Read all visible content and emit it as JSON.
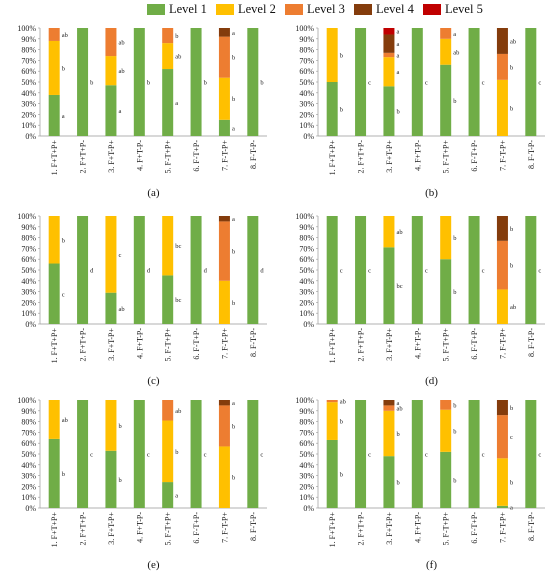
{
  "legend": [
    {
      "label": "Level 1",
      "color": "#70AD47"
    },
    {
      "label": "Level 2",
      "color": "#FFC000"
    },
    {
      "label": "Level 3",
      "color": "#ED7D31"
    },
    {
      "label": "Level 4",
      "color": "#843C0C"
    },
    {
      "label": "Level 5",
      "color": "#C00000"
    }
  ],
  "chart_data": [
    {
      "type": "bar",
      "stacked": true,
      "panel_label": "(a)",
      "categories": [
        "1. F+T+P+",
        "2. F+T+P-",
        "3. F+T-P+",
        "4. F+T-P-",
        "5. F-T+P+",
        "6. F-T+P-",
        "7. F-T-P+",
        "8. F-T-P-"
      ],
      "ylim": [
        0,
        100
      ],
      "yticks": [
        "0%",
        "10%",
        "20%",
        "30%",
        "40%",
        "50%",
        "60%",
        "70%",
        "80%",
        "90%",
        "100%"
      ],
      "series": [
        {
          "name": "Level 1",
          "values": [
            38,
            100,
            47,
            100,
            62,
            100,
            15,
            100
          ]
        },
        {
          "name": "Level 2",
          "values": [
            50,
            0,
            27,
            0,
            24,
            0,
            39,
            0
          ]
        },
        {
          "name": "Level 3",
          "values": [
            12,
            0,
            26,
            0,
            14,
            0,
            38,
            0
          ]
        },
        {
          "name": "Level 4",
          "values": [
            0,
            0,
            0,
            0,
            0,
            0,
            8,
            0
          ]
        },
        {
          "name": "Level 5",
          "values": [
            0,
            0,
            0,
            0,
            0,
            0,
            0,
            0
          ]
        }
      ],
      "letters": [
        {
          "cat": 0,
          "level": 0,
          "text": "a"
        },
        {
          "cat": 0,
          "level": 1,
          "text": "b"
        },
        {
          "cat": 0,
          "level": 2,
          "text": "ab"
        },
        {
          "cat": 1,
          "level": 0,
          "text": "b"
        },
        {
          "cat": 2,
          "level": 0,
          "text": "a"
        },
        {
          "cat": 2,
          "level": 1,
          "text": "ab"
        },
        {
          "cat": 2,
          "level": 2,
          "text": "ab"
        },
        {
          "cat": 3,
          "level": 0,
          "text": "b"
        },
        {
          "cat": 4,
          "level": 0,
          "text": "a"
        },
        {
          "cat": 4,
          "level": 1,
          "text": "ab"
        },
        {
          "cat": 4,
          "level": 2,
          "text": "b"
        },
        {
          "cat": 5,
          "level": 0,
          "text": "b"
        },
        {
          "cat": 6,
          "level": 0,
          "text": "a"
        },
        {
          "cat": 6,
          "level": 1,
          "text": "b"
        },
        {
          "cat": 6,
          "level": 2,
          "text": "b"
        },
        {
          "cat": 6,
          "level": 3,
          "text": "a"
        },
        {
          "cat": 7,
          "level": 0,
          "text": "b"
        }
      ]
    },
    {
      "type": "bar",
      "stacked": true,
      "panel_label": "(b)",
      "categories": [
        "1. F+T+P+",
        "2. F+T+P-",
        "3. F+T-P+",
        "4. F+T-P-",
        "5. F-T+P+",
        "6. F-T+P-",
        "7. F-T-P+",
        "8. F-T-P-"
      ],
      "ylim": [
        0,
        100
      ],
      "yticks": [
        "0%",
        "10%",
        "20%",
        "30%",
        "40%",
        "50%",
        "60%",
        "70%",
        "80%",
        "90%",
        "100%"
      ],
      "series": [
        {
          "name": "Level 1",
          "values": [
            50,
            100,
            46,
            100,
            66,
            100,
            0,
            100
          ]
        },
        {
          "name": "Level 2",
          "values": [
            50,
            0,
            27,
            0,
            24,
            0,
            52,
            0
          ]
        },
        {
          "name": "Level 3",
          "values": [
            0,
            0,
            4,
            0,
            10,
            0,
            24,
            0
          ]
        },
        {
          "name": "Level 4",
          "values": [
            0,
            0,
            17,
            0,
            0,
            0,
            24,
            0
          ]
        },
        {
          "name": "Level 5",
          "values": [
            0,
            0,
            6,
            0,
            0,
            0,
            0,
            0
          ]
        }
      ],
      "letters": [
        {
          "cat": 0,
          "level": 0,
          "text": "b"
        },
        {
          "cat": 0,
          "level": 1,
          "text": "b"
        },
        {
          "cat": 1,
          "level": 0,
          "text": "c"
        },
        {
          "cat": 2,
          "level": 0,
          "text": "b"
        },
        {
          "cat": 2,
          "level": 1,
          "text": "a"
        },
        {
          "cat": 2,
          "level": 2,
          "text": "a"
        },
        {
          "cat": 2,
          "level": 3,
          "text": "a"
        },
        {
          "cat": 2,
          "level": 4,
          "text": "a"
        },
        {
          "cat": 3,
          "level": 0,
          "text": "c"
        },
        {
          "cat": 4,
          "level": 0,
          "text": "b"
        },
        {
          "cat": 4,
          "level": 1,
          "text": "ab"
        },
        {
          "cat": 4,
          "level": 2,
          "text": "a"
        },
        {
          "cat": 5,
          "level": 0,
          "text": "c"
        },
        {
          "cat": 6,
          "level": 1,
          "text": "b"
        },
        {
          "cat": 6,
          "level": 2,
          "text": "b"
        },
        {
          "cat": 6,
          "level": 3,
          "text": "ab"
        },
        {
          "cat": 7,
          "level": 0,
          "text": "c"
        }
      ]
    },
    {
      "type": "bar",
      "stacked": true,
      "panel_label": "(c)",
      "categories": [
        "1. F+T+P+",
        "2. F+T+P-",
        "3. F+T-P+",
        "4. F+T-P-",
        "5. F-T+P+",
        "6. F-T+P-",
        "7. F-T-P+",
        "8. F-T-P-"
      ],
      "ylim": [
        0,
        100
      ],
      "yticks": [
        "0%",
        "10%",
        "20%",
        "30%",
        "40%",
        "50%",
        "60%",
        "70%",
        "80%",
        "90%",
        "100%"
      ],
      "series": [
        {
          "name": "Level 1",
          "values": [
            56,
            100,
            29,
            100,
            45,
            100,
            0,
            100
          ]
        },
        {
          "name": "Level 2",
          "values": [
            44,
            0,
            71,
            0,
            55,
            0,
            40,
            0
          ]
        },
        {
          "name": "Level 3",
          "values": [
            0,
            0,
            0,
            0,
            0,
            0,
            55,
            0
          ]
        },
        {
          "name": "Level 4",
          "values": [
            0,
            0,
            0,
            0,
            0,
            0,
            5,
            0
          ]
        },
        {
          "name": "Level 5",
          "values": [
            0,
            0,
            0,
            0,
            0,
            0,
            0,
            0
          ]
        }
      ],
      "letters": [
        {
          "cat": 0,
          "level": 0,
          "text": "c"
        },
        {
          "cat": 0,
          "level": 1,
          "text": "b"
        },
        {
          "cat": 1,
          "level": 0,
          "text": "d"
        },
        {
          "cat": 2,
          "level": 0,
          "text": "ab"
        },
        {
          "cat": 2,
          "level": 1,
          "text": "c"
        },
        {
          "cat": 3,
          "level": 0,
          "text": "d"
        },
        {
          "cat": 4,
          "level": 0,
          "text": "bc"
        },
        {
          "cat": 4,
          "level": 1,
          "text": "bc"
        },
        {
          "cat": 5,
          "level": 0,
          "text": "d"
        },
        {
          "cat": 6,
          "level": 1,
          "text": "b"
        },
        {
          "cat": 6,
          "level": 2,
          "text": "b"
        },
        {
          "cat": 6,
          "level": 3,
          "text": "a"
        },
        {
          "cat": 7,
          "level": 0,
          "text": "d"
        }
      ]
    },
    {
      "type": "bar",
      "stacked": true,
      "panel_label": "(d)",
      "categories": [
        "1. F+T+P+",
        "2. F+T+P-",
        "3. F+T-P+",
        "4. F+T-P-",
        "5. F-T+P+",
        "6. F-T+P-",
        "7. F-T-P+",
        "8. F-T-P-"
      ],
      "ylim": [
        0,
        100
      ],
      "yticks": [
        "0%",
        "10%",
        "20%",
        "30%",
        "40%",
        "50%",
        "60%",
        "70%",
        "80%",
        "90%",
        "100%"
      ],
      "series": [
        {
          "name": "Level 1",
          "values": [
            100,
            100,
            71,
            100,
            60,
            100,
            0,
            100
          ]
        },
        {
          "name": "Level 2",
          "values": [
            0,
            0,
            29,
            0,
            40,
            0,
            32,
            0
          ]
        },
        {
          "name": "Level 3",
          "values": [
            0,
            0,
            0,
            0,
            0,
            0,
            45,
            0
          ]
        },
        {
          "name": "Level 4",
          "values": [
            0,
            0,
            0,
            0,
            0,
            0,
            23,
            0
          ]
        },
        {
          "name": "Level 5",
          "values": [
            0,
            0,
            0,
            0,
            0,
            0,
            0,
            0
          ]
        }
      ],
      "letters": [
        {
          "cat": 0,
          "level": 0,
          "text": "c"
        },
        {
          "cat": 1,
          "level": 0,
          "text": "c"
        },
        {
          "cat": 2,
          "level": 0,
          "text": "bc"
        },
        {
          "cat": 2,
          "level": 1,
          "text": "ab"
        },
        {
          "cat": 3,
          "level": 0,
          "text": "c"
        },
        {
          "cat": 4,
          "level": 0,
          "text": "b"
        },
        {
          "cat": 4,
          "level": 1,
          "text": "b"
        },
        {
          "cat": 5,
          "level": 0,
          "text": "c"
        },
        {
          "cat": 6,
          "level": 1,
          "text": "ab"
        },
        {
          "cat": 6,
          "level": 2,
          "text": "b"
        },
        {
          "cat": 6,
          "level": 3,
          "text": "b"
        },
        {
          "cat": 7,
          "level": 0,
          "text": "c"
        }
      ]
    },
    {
      "type": "bar",
      "stacked": true,
      "panel_label": "(e)",
      "categories": [
        "1. F+T+P+",
        "2. F+T+P-",
        "3. F+T-P+",
        "4. F+T-P-",
        "5. F-T+P+",
        "6. F-T+P-",
        "7. F-T-P+",
        "8. F-T-P-"
      ],
      "ylim": [
        0,
        100
      ],
      "yticks": [
        "0%",
        "10%",
        "20%",
        "30%",
        "40%",
        "50%",
        "60%",
        "70%",
        "80%",
        "90%",
        "100%"
      ],
      "series": [
        {
          "name": "Level 1",
          "values": [
            64,
            100,
            53,
            100,
            24,
            100,
            0,
            100
          ]
        },
        {
          "name": "Level 2",
          "values": [
            36,
            0,
            47,
            0,
            57,
            0,
            57,
            0
          ]
        },
        {
          "name": "Level 3",
          "values": [
            0,
            0,
            0,
            0,
            19,
            0,
            38,
            0
          ]
        },
        {
          "name": "Level 4",
          "values": [
            0,
            0,
            0,
            0,
            0,
            0,
            5,
            0
          ]
        },
        {
          "name": "Level 5",
          "values": [
            0,
            0,
            0,
            0,
            0,
            0,
            0,
            0
          ]
        }
      ],
      "letters": [
        {
          "cat": 0,
          "level": 0,
          "text": "b"
        },
        {
          "cat": 0,
          "level": 1,
          "text": "ab"
        },
        {
          "cat": 1,
          "level": 0,
          "text": "c"
        },
        {
          "cat": 2,
          "level": 0,
          "text": "b"
        },
        {
          "cat": 2,
          "level": 1,
          "text": "b"
        },
        {
          "cat": 3,
          "level": 0,
          "text": "c"
        },
        {
          "cat": 4,
          "level": 0,
          "text": "a"
        },
        {
          "cat": 4,
          "level": 1,
          "text": "b"
        },
        {
          "cat": 4,
          "level": 2,
          "text": "ab"
        },
        {
          "cat": 5,
          "level": 0,
          "text": "c"
        },
        {
          "cat": 6,
          "level": 1,
          "text": "b"
        },
        {
          "cat": 6,
          "level": 2,
          "text": "b"
        },
        {
          "cat": 6,
          "level": 3,
          "text": "a"
        },
        {
          "cat": 7,
          "level": 0,
          "text": "c"
        }
      ]
    },
    {
      "type": "bar",
      "stacked": true,
      "panel_label": "(f)",
      "categories": [
        "1. F+T+P+",
        "2. F+T+P-",
        "3. F+T-P+",
        "4. F+T-P-",
        "5. F-T+P+",
        "6. F-T+P-",
        "7. F-T-P+",
        "8. F-T-P-"
      ],
      "ylim": [
        0,
        100
      ],
      "yticks": [
        "0%",
        "10%",
        "20%",
        "30%",
        "40%",
        "50%",
        "60%",
        "70%",
        "80%",
        "90%",
        "100%"
      ],
      "series": [
        {
          "name": "Level 1",
          "values": [
            63,
            100,
            48,
            100,
            52,
            100,
            2,
            100
          ]
        },
        {
          "name": "Level 2",
          "values": [
            35,
            0,
            42,
            0,
            39,
            0,
            44,
            0
          ]
        },
        {
          "name": "Level 3",
          "values": [
            2,
            0,
            5,
            0,
            9,
            0,
            40,
            0
          ]
        },
        {
          "name": "Level 4",
          "values": [
            0,
            0,
            5,
            0,
            0,
            0,
            14,
            0
          ]
        },
        {
          "name": "Level 5",
          "values": [
            0,
            0,
            0,
            0,
            0,
            0,
            0,
            0
          ]
        }
      ],
      "letters": [
        {
          "cat": 0,
          "level": 0,
          "text": "b"
        },
        {
          "cat": 0,
          "level": 1,
          "text": "b"
        },
        {
          "cat": 0,
          "level": 2,
          "text": "ab"
        },
        {
          "cat": 1,
          "level": 0,
          "text": "c"
        },
        {
          "cat": 2,
          "level": 0,
          "text": "b"
        },
        {
          "cat": 2,
          "level": 1,
          "text": "b"
        },
        {
          "cat": 2,
          "level": 2,
          "text": "ab"
        },
        {
          "cat": 2,
          "level": 3,
          "text": "a"
        },
        {
          "cat": 3,
          "level": 0,
          "text": "c"
        },
        {
          "cat": 4,
          "level": 0,
          "text": "b"
        },
        {
          "cat": 4,
          "level": 1,
          "text": "b"
        },
        {
          "cat": 4,
          "level": 2,
          "text": "b"
        },
        {
          "cat": 5,
          "level": 0,
          "text": "c"
        },
        {
          "cat": 6,
          "level": 0,
          "text": "a"
        },
        {
          "cat": 6,
          "level": 1,
          "text": "b"
        },
        {
          "cat": 6,
          "level": 2,
          "text": "c"
        },
        {
          "cat": 6,
          "level": 3,
          "text": "b"
        },
        {
          "cat": 7,
          "level": 0,
          "text": "c"
        }
      ]
    }
  ]
}
